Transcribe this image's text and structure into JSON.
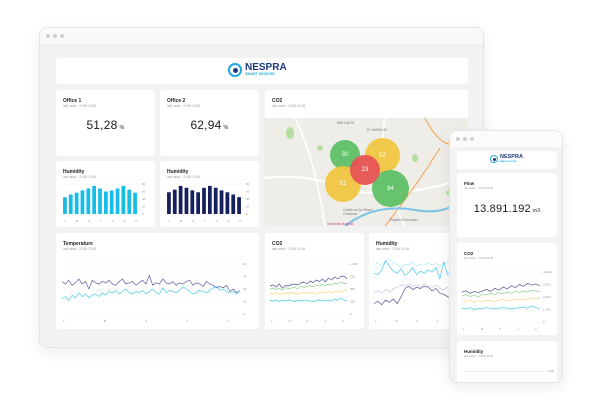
{
  "brand": {
    "name": "NESPRA",
    "tagline": "SMART DEVICES",
    "primary": "#1e3a7b",
    "accent": "#1fa8dc"
  },
  "desktop": {
    "cards": {
      "office1": {
        "title": "Office 1",
        "subtitle": "last value · 21/09 10:26",
        "value": "51,28",
        "unit": "%"
      },
      "office2": {
        "title": "Office 2",
        "subtitle": "last value · 21/09 10:26",
        "value": "62,94",
        "unit": "%"
      },
      "co2_map": {
        "title": "CO2",
        "subtitle": "last value · 21/09 10:26",
        "clusters": [
          {
            "value": "30",
            "color": "#5cbf63"
          },
          {
            "value": "52",
            "color": "#f2c53d"
          },
          {
            "value": "23",
            "color": "#e85454"
          },
          {
            "value": "51",
            "color": "#f2c53d"
          },
          {
            "value": "84",
            "color": "#5cbf63"
          }
        ],
        "map_labels": [
          "BRILLANTE",
          "EL NARANJO",
          "Córdoba",
          "Castillo de los Reyes Cristianos",
          "Estadio El Arcángel",
          "University Hospital"
        ]
      },
      "humidity1": {
        "title": "Humidity",
        "subtitle": "last value · 21/09 10:26"
      },
      "humidity2": {
        "title": "Humidity",
        "subtitle": "last value · 21/09 10:26"
      },
      "temperature": {
        "title": "Temperature",
        "subtitle": "last value · 21/09 10:26"
      },
      "co2_line": {
        "title": "CO2",
        "subtitle": "last value · 21/09 10:26"
      },
      "humidity_line": {
        "title": "Humidity",
        "subtitle": "last value · 21/09 10:26"
      }
    }
  },
  "mobile": {
    "flow": {
      "title": "Flow",
      "subtitle": "last value · 21/09 10:26",
      "value": "13.891.192",
      "unit": "m3"
    },
    "co2": {
      "title": "CO2",
      "subtitle": "last value · 21/09 10:26"
    },
    "humidity": {
      "title": "Humidity",
      "subtitle": "last value · 21/09 10:26",
      "top_tick": "1.000"
    }
  },
  "chart_data": [
    {
      "id": "humidity1",
      "type": "bar",
      "title": "Humidity",
      "color": "#16bde6",
      "categories": [
        "L",
        "",
        "M",
        "",
        "X",
        "",
        "J",
        "",
        "V",
        "",
        "S",
        "",
        "D"
      ],
      "xticks": [
        "L",
        "M",
        "X",
        "J",
        "V",
        "S",
        "D"
      ],
      "values": [
        45,
        52,
        57,
        63,
        68,
        75,
        68,
        60,
        63,
        68,
        75,
        65,
        57
      ],
      "yticks": [
        "80",
        "60",
        "40",
        "20",
        "0"
      ],
      "ylim": [
        0,
        80
      ]
    },
    {
      "id": "humidity2",
      "type": "bar",
      "title": "Humidity",
      "color": "#16205e",
      "categories": [
        "L",
        "",
        "M",
        "",
        "X",
        "",
        "J",
        "",
        "V",
        "",
        "S",
        "",
        "D"
      ],
      "xticks": [
        "L",
        "M",
        "X",
        "J",
        "V",
        "S",
        "D"
      ],
      "values": [
        58,
        65,
        75,
        70,
        63,
        58,
        70,
        75,
        70,
        63,
        58,
        52,
        45
      ],
      "yticks": [
        "80",
        "60",
        "40",
        "20",
        "0"
      ],
      "ylim": [
        0,
        80
      ]
    },
    {
      "id": "temperature",
      "type": "line",
      "title": "Temperature",
      "xticks": [
        "L",
        "M",
        "X",
        "J",
        "V"
      ],
      "yticks": [
        "40",
        "30",
        "20",
        "10",
        "0"
      ],
      "ylim": [
        0,
        40
      ],
      "series": [
        {
          "name": "series-1",
          "color": "#5b5fa3",
          "values": [
            26,
            24,
            27,
            23,
            25,
            28,
            24,
            26,
            20,
            27,
            25,
            24,
            26,
            25,
            27,
            24,
            23,
            26,
            28,
            24,
            25,
            26,
            23,
            25,
            27,
            24,
            31,
            23,
            25,
            24,
            28,
            25,
            24,
            26,
            23,
            25,
            24,
            26,
            27,
            23,
            25,
            24,
            22,
            26,
            24,
            23,
            21,
            22,
            21,
            23,
            18,
            20,
            17,
            19
          ]
        },
        {
          "name": "series-2",
          "color": "#49c9ea",
          "values": [
            12,
            14,
            11,
            15,
            13,
            17,
            14,
            16,
            13,
            15,
            16,
            14,
            17,
            15,
            18,
            17,
            19,
            16,
            18,
            20,
            17,
            16,
            18,
            17,
            19,
            16,
            18,
            20,
            17,
            16,
            21,
            17,
            19,
            18,
            17,
            19,
            22,
            20,
            18,
            16,
            17,
            19,
            18,
            17,
            19,
            21,
            22,
            19,
            20,
            18,
            17,
            18,
            16,
            19
          ]
        }
      ]
    },
    {
      "id": "co2_line",
      "type": "line",
      "title": "CO2",
      "xticks": [
        "L",
        "M",
        "X",
        "J",
        "V"
      ],
      "yticks": [
        "1.000",
        "750",
        "500",
        "250",
        "0"
      ],
      "ylim": [
        0,
        1000
      ],
      "series": [
        {
          "name": "series-1",
          "color": "#4f5499",
          "values": [
            560,
            580,
            540,
            600,
            520,
            570,
            560,
            590,
            600,
            580,
            620,
            640,
            600,
            660,
            630,
            680,
            650,
            700,
            640,
            720,
            680,
            740,
            700,
            750,
            760,
            700
          ]
        },
        {
          "name": "series-2",
          "color": "#8bd48f",
          "values": [
            500,
            520,
            490,
            510,
            480,
            530,
            510,
            520,
            540,
            500,
            560,
            530,
            550,
            570,
            540,
            580,
            560,
            590,
            570,
            600,
            580,
            620,
            600,
            640,
            610,
            600
          ]
        },
        {
          "name": "series-3",
          "color": "#f6d77f",
          "values": [
            420,
            400,
            430,
            390,
            410,
            420,
            400,
            430,
            410,
            400,
            420,
            440,
            410,
            430,
            420,
            400,
            440,
            420,
            430,
            450,
            420,
            440,
            460,
            430,
            470,
            480
          ]
        },
        {
          "name": "series-4",
          "color": "#49c9ea",
          "values": [
            270,
            260,
            280,
            250,
            270,
            260,
            280,
            270,
            250,
            270,
            260,
            280,
            270,
            260,
            250,
            270,
            280,
            260,
            270,
            280,
            260,
            300,
            270,
            320,
            280,
            260
          ]
        }
      ]
    },
    {
      "id": "humidity_line",
      "type": "line",
      "title": "Humidity",
      "xticks": [
        "L",
        "M",
        "X",
        "J",
        "V"
      ],
      "series": [
        {
          "name": "series-1",
          "color": "#b4e9f7",
          "values": [
            85,
            88,
            83,
            92,
            95,
            88,
            85,
            80,
            86,
            84,
            90,
            82,
            86,
            84,
            88,
            85,
            87,
            83,
            86,
            90,
            88,
            85,
            87,
            84
          ]
        },
        {
          "name": "series-2",
          "color": "#49c9ea",
          "values": [
            70,
            68,
            75,
            92,
            82,
            74,
            70,
            78,
            66,
            72,
            80,
            68,
            74,
            70,
            76,
            72,
            80,
            60,
            90,
            68,
            74,
            70,
            72,
            70
          ]
        },
        {
          "name": "series-3",
          "color": "#c7c6e0",
          "values": [
            38,
            40,
            36,
            42,
            38,
            44,
            46,
            50,
            48,
            52,
            48,
            50,
            46,
            52,
            48,
            46,
            50,
            44,
            42,
            46,
            40,
            44,
            38,
            36
          ]
        },
        {
          "name": "series-4",
          "color": "#4f5499",
          "values": [
            18,
            22,
            16,
            24,
            20,
            26,
            18,
            30,
            44,
            48,
            42,
            46,
            44,
            48,
            46,
            40,
            44,
            36,
            34,
            30,
            26,
            24,
            20,
            18
          ]
        }
      ]
    },
    {
      "id": "mobile_co2",
      "type": "line",
      "title": "CO2",
      "xticks": [
        "L",
        "M",
        "X",
        "J",
        "V"
      ],
      "yticks": [
        "4.000k",
        "3.000",
        "2.000",
        "1.000",
        "0"
      ],
      "ylim": [
        0,
        4000
      ],
      "series": [
        {
          "name": "series-1",
          "color": "#4f5499",
          "values": [
            2400,
            2500,
            2300,
            2450,
            2350,
            2500,
            2600,
            2450,
            2700,
            2550,
            2800,
            2650,
            2900,
            2750,
            3000,
            2850,
            3100,
            2950,
            3050,
            2900
          ]
        },
        {
          "name": "series-2",
          "color": "#8bd48f",
          "values": [
            2100,
            2200,
            2050,
            2150,
            2000,
            2250,
            2150,
            2300,
            2200,
            2350,
            2250,
            2400,
            2300,
            2450,
            2350,
            2500,
            2400,
            2550,
            2500,
            2400
          ]
        },
        {
          "name": "series-3",
          "color": "#f6d77f",
          "values": [
            1700,
            1650,
            1750,
            1600,
            1700,
            1650,
            1750,
            1700,
            1650,
            1750,
            1800,
            1700,
            1750,
            1800,
            1850,
            1750,
            1800,
            1900,
            1850,
            1950
          ]
        },
        {
          "name": "series-4",
          "color": "#49c9ea",
          "values": [
            1100,
            1050,
            1150,
            1000,
            1100,
            1050,
            1150,
            1100,
            1050,
            1100,
            1150,
            1100,
            1050,
            1100,
            1150,
            1200,
            1100,
            1300,
            1150,
            1050
          ]
        }
      ]
    }
  ]
}
